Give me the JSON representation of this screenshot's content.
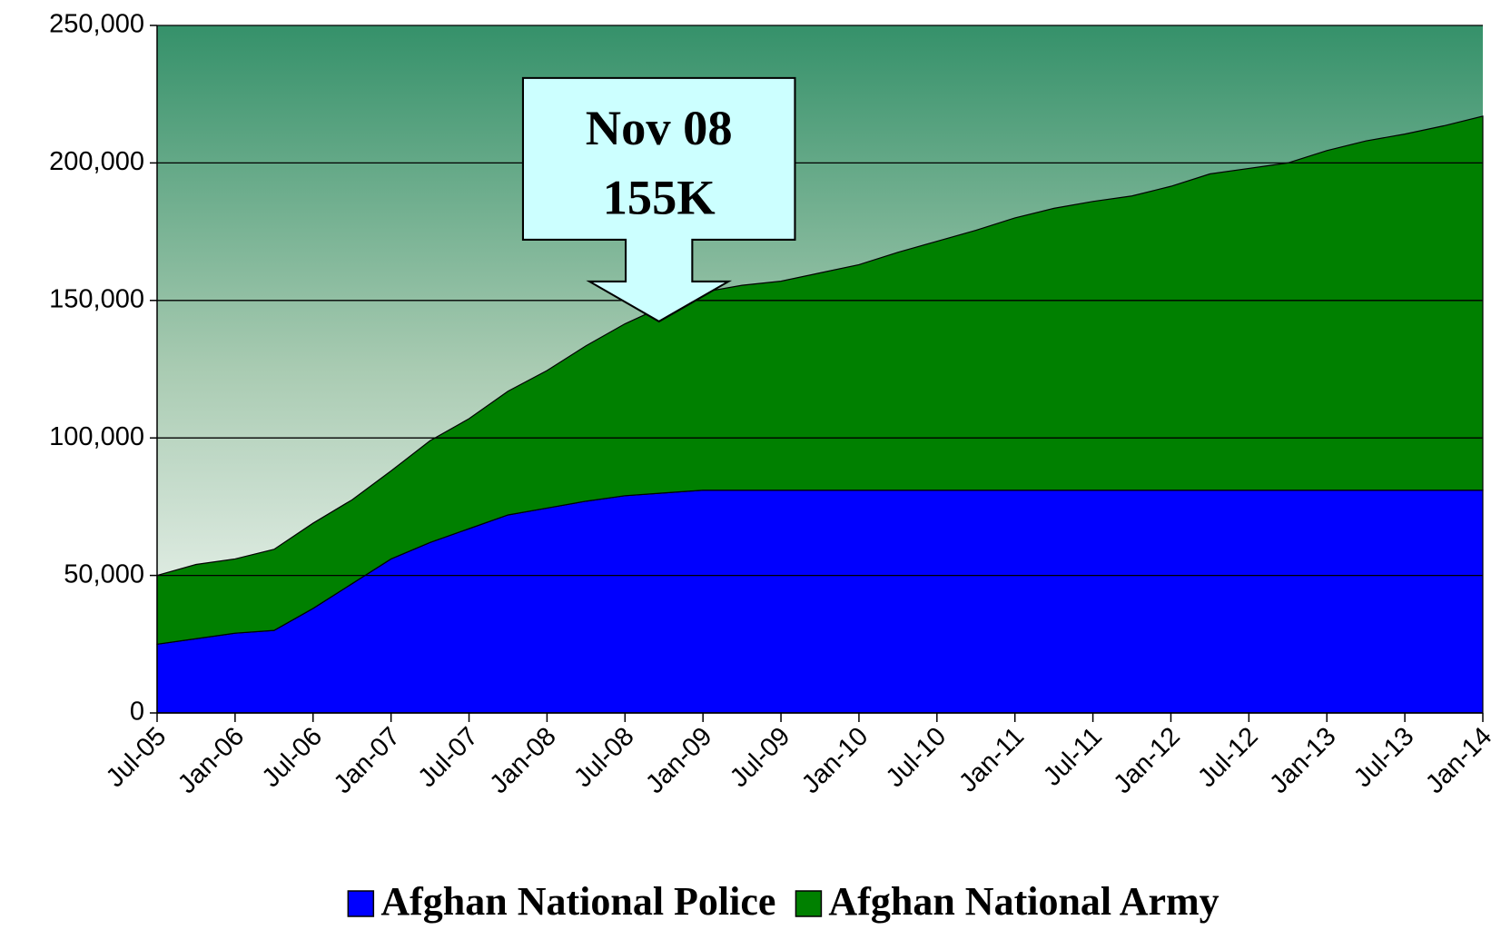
{
  "chart_data": {
    "type": "area",
    "stacked": true,
    "categories": [
      "Jul-05",
      null,
      "Jan-06",
      null,
      "Jul-06",
      null,
      "Jan-07",
      null,
      "Jul-07",
      null,
      "Jan-08",
      null,
      "Jul-08",
      null,
      "Jan-09",
      null,
      "Jul-09",
      null,
      "Jan-10",
      null,
      "Jul-10",
      null,
      "Jan-11",
      null,
      "Jul-11",
      null,
      "Jan-12",
      null,
      "Jul-12",
      null,
      "Jan-13",
      null,
      "Jul-13",
      null,
      "Jan-14"
    ],
    "series": [
      {
        "name": "Afghan National Police",
        "color": "#0000ff",
        "values": [
          25000,
          27000,
          29000,
          30000,
          38000,
          47000,
          56000,
          62000,
          67000,
          72000,
          74500,
          77000,
          79000,
          80000,
          81000,
          81000,
          81000,
          81000,
          81000,
          81000,
          81000,
          81000,
          81000,
          81000,
          81000,
          81000,
          81000,
          81000,
          81000,
          81000,
          81000,
          81000,
          81000,
          81000,
          81000
        ]
      },
      {
        "name": "Afghan National Army",
        "color": "#008000",
        "values": [
          25000,
          27000,
          27000,
          29500,
          31000,
          30500,
          32000,
          37000,
          40000,
          45000,
          50000,
          56500,
          62500,
          68000,
          72000,
          74500,
          76000,
          79000,
          82000,
          86500,
          90500,
          94500,
          99000,
          102500,
          105000,
          107000,
          110500,
          115000,
          117000,
          119000,
          123500,
          127000,
          129500,
          132500,
          136000
        ]
      }
    ],
    "ylim": [
      0,
      250000
    ],
    "yticks": [
      0,
      {
        "value": 50000,
        "label": "50,000"
      },
      {
        "value": 100000,
        "label": "100,000"
      },
      {
        "value": 150000,
        "label": "150,000"
      },
      {
        "value": 200000,
        "label": "200,000"
      },
      {
        "value": 250000,
        "label": "250,000"
      }
    ],
    "grid": true,
    "legend": "bottom",
    "annotation": [
      "Nov 08",
      "155K"
    ]
  }
}
